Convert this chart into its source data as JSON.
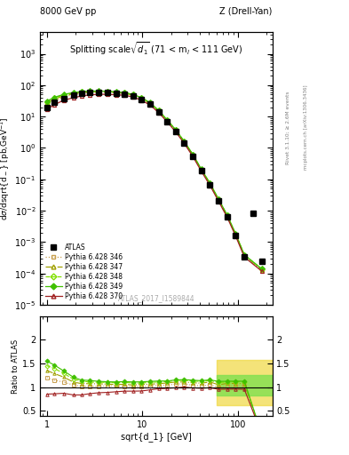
{
  "title_left": "8000 GeV pp",
  "title_right": "Z (Drell-Yan)",
  "plot_title": "Splitting scale $\\sqrt{d_1}$ (71 < m$_l$ < 111 GeV)",
  "ylabel_main": "d$\\sigma$/dsqrt[d$_-$] [pb,GeV$^{-1}$]",
  "ylabel_ratio": "Ratio to ATLAS",
  "xlabel": "sqrt{d_1} [GeV]",
  "watermark": "ATLAS_2017_I1589844",
  "atlas_x": [
    1.0,
    1.2,
    1.5,
    1.9,
    2.3,
    2.8,
    3.5,
    4.3,
    5.3,
    6.5,
    8.0,
    9.8,
    12.0,
    14.8,
    18.2,
    22.4,
    27.5,
    33.8,
    41.6,
    51.2,
    63.0,
    77.5,
    95.4,
    117.4,
    144.5,
    177.8
  ],
  "atlas_y": [
    20.0,
    28.0,
    38.0,
    48.0,
    54.0,
    57.0,
    58.0,
    57.5,
    55.0,
    52.0,
    46.0,
    36.0,
    25.0,
    14.0,
    7.0,
    3.3,
    1.4,
    0.55,
    0.185,
    0.065,
    0.021,
    0.0065,
    0.0016,
    0.00035,
    0.0085,
    0.00025
  ],
  "p346_x": [
    1.0,
    1.2,
    1.5,
    1.9,
    2.3,
    2.8,
    3.5,
    4.3,
    5.3,
    6.5,
    8.0,
    9.8,
    12.0,
    14.8,
    18.2,
    22.4,
    27.5,
    33.8,
    41.6,
    51.2,
    63.0,
    77.5,
    95.4,
    117.4,
    177.8
  ],
  "p346_y": [
    24.0,
    32.0,
    42.0,
    50.0,
    55.0,
    58.0,
    59.0,
    59.0,
    56.5,
    53.0,
    46.5,
    36.5,
    25.5,
    14.5,
    7.3,
    3.5,
    1.5,
    0.57,
    0.19,
    0.068,
    0.021,
    0.0066,
    0.00165,
    0.00036,
    0.00013
  ],
  "p347_x": [
    1.0,
    1.2,
    1.5,
    1.9,
    2.3,
    2.8,
    3.5,
    4.3,
    5.3,
    6.5,
    8.0,
    9.8,
    12.0,
    14.8,
    18.2,
    22.4,
    27.5,
    33.8,
    41.6,
    51.2,
    63.0,
    77.5,
    95.4,
    117.4,
    177.8
  ],
  "p347_y": [
    27.0,
    36.0,
    46.0,
    53.0,
    58.0,
    61.0,
    62.0,
    61.0,
    58.0,
    55.0,
    48.0,
    38.0,
    26.5,
    15.0,
    7.6,
    3.65,
    1.55,
    0.6,
    0.2,
    0.072,
    0.022,
    0.007,
    0.00172,
    0.000375,
    0.000135
  ],
  "p348_x": [
    1.0,
    1.2,
    1.5,
    1.9,
    2.3,
    2.8,
    3.5,
    4.3,
    5.3,
    6.5,
    8.0,
    9.8,
    12.0,
    14.8,
    18.2,
    22.4,
    27.5,
    33.8,
    41.6,
    51.2,
    63.0,
    77.5,
    95.4,
    117.4,
    177.8
  ],
  "p348_y": [
    29.0,
    39.0,
    49.0,
    56.0,
    61.0,
    63.0,
    64.0,
    63.0,
    60.0,
    57.0,
    50.0,
    39.0,
    27.5,
    15.5,
    7.8,
    3.75,
    1.6,
    0.62,
    0.207,
    0.074,
    0.023,
    0.0072,
    0.00178,
    0.000388,
    0.00014
  ],
  "p349_x": [
    1.0,
    1.2,
    1.5,
    1.9,
    2.3,
    2.8,
    3.5,
    4.3,
    5.3,
    6.5,
    8.0,
    9.8,
    12.0,
    14.8,
    18.2,
    22.4,
    27.5,
    33.8,
    41.6,
    51.2,
    63.0,
    77.5,
    95.4,
    117.4,
    177.8
  ],
  "p349_y": [
    31.0,
    41.0,
    51.0,
    58.0,
    62.0,
    65.0,
    65.0,
    64.0,
    61.0,
    58.0,
    51.0,
    40.0,
    28.0,
    15.8,
    7.9,
    3.8,
    1.62,
    0.63,
    0.21,
    0.075,
    0.0235,
    0.0073,
    0.0018,
    0.000393,
    0.000142
  ],
  "p370_x": [
    1.0,
    1.2,
    1.5,
    1.9,
    2.3,
    2.8,
    3.5,
    4.3,
    5.3,
    6.5,
    8.0,
    9.8,
    12.0,
    14.8,
    18.2,
    22.4,
    27.5,
    33.8,
    41.6,
    51.2,
    63.0,
    77.5,
    95.4,
    117.4,
    177.8
  ],
  "p370_y": [
    17.0,
    24.0,
    33.0,
    40.0,
    45.0,
    49.0,
    51.0,
    51.0,
    49.5,
    47.5,
    42.0,
    33.0,
    23.5,
    13.5,
    6.8,
    3.25,
    1.4,
    0.54,
    0.18,
    0.064,
    0.02,
    0.0062,
    0.00153,
    0.000333,
    0.00012
  ],
  "color_346": "#c8a050",
  "color_347": "#a0a000",
  "color_348": "#80e000",
  "color_349": "#40c000",
  "color_370": "#a02020",
  "xlim": [
    0.85,
    230
  ],
  "ylim_main": [
    1e-05,
    5000
  ],
  "ylim_ratio": [
    0.38,
    2.5
  ],
  "ratio_yticks": [
    0.5,
    1.0,
    1.5,
    2.0
  ],
  "ratio_yticklabels": [
    "0.5",
    "1",
    "1.5",
    "2"
  ]
}
